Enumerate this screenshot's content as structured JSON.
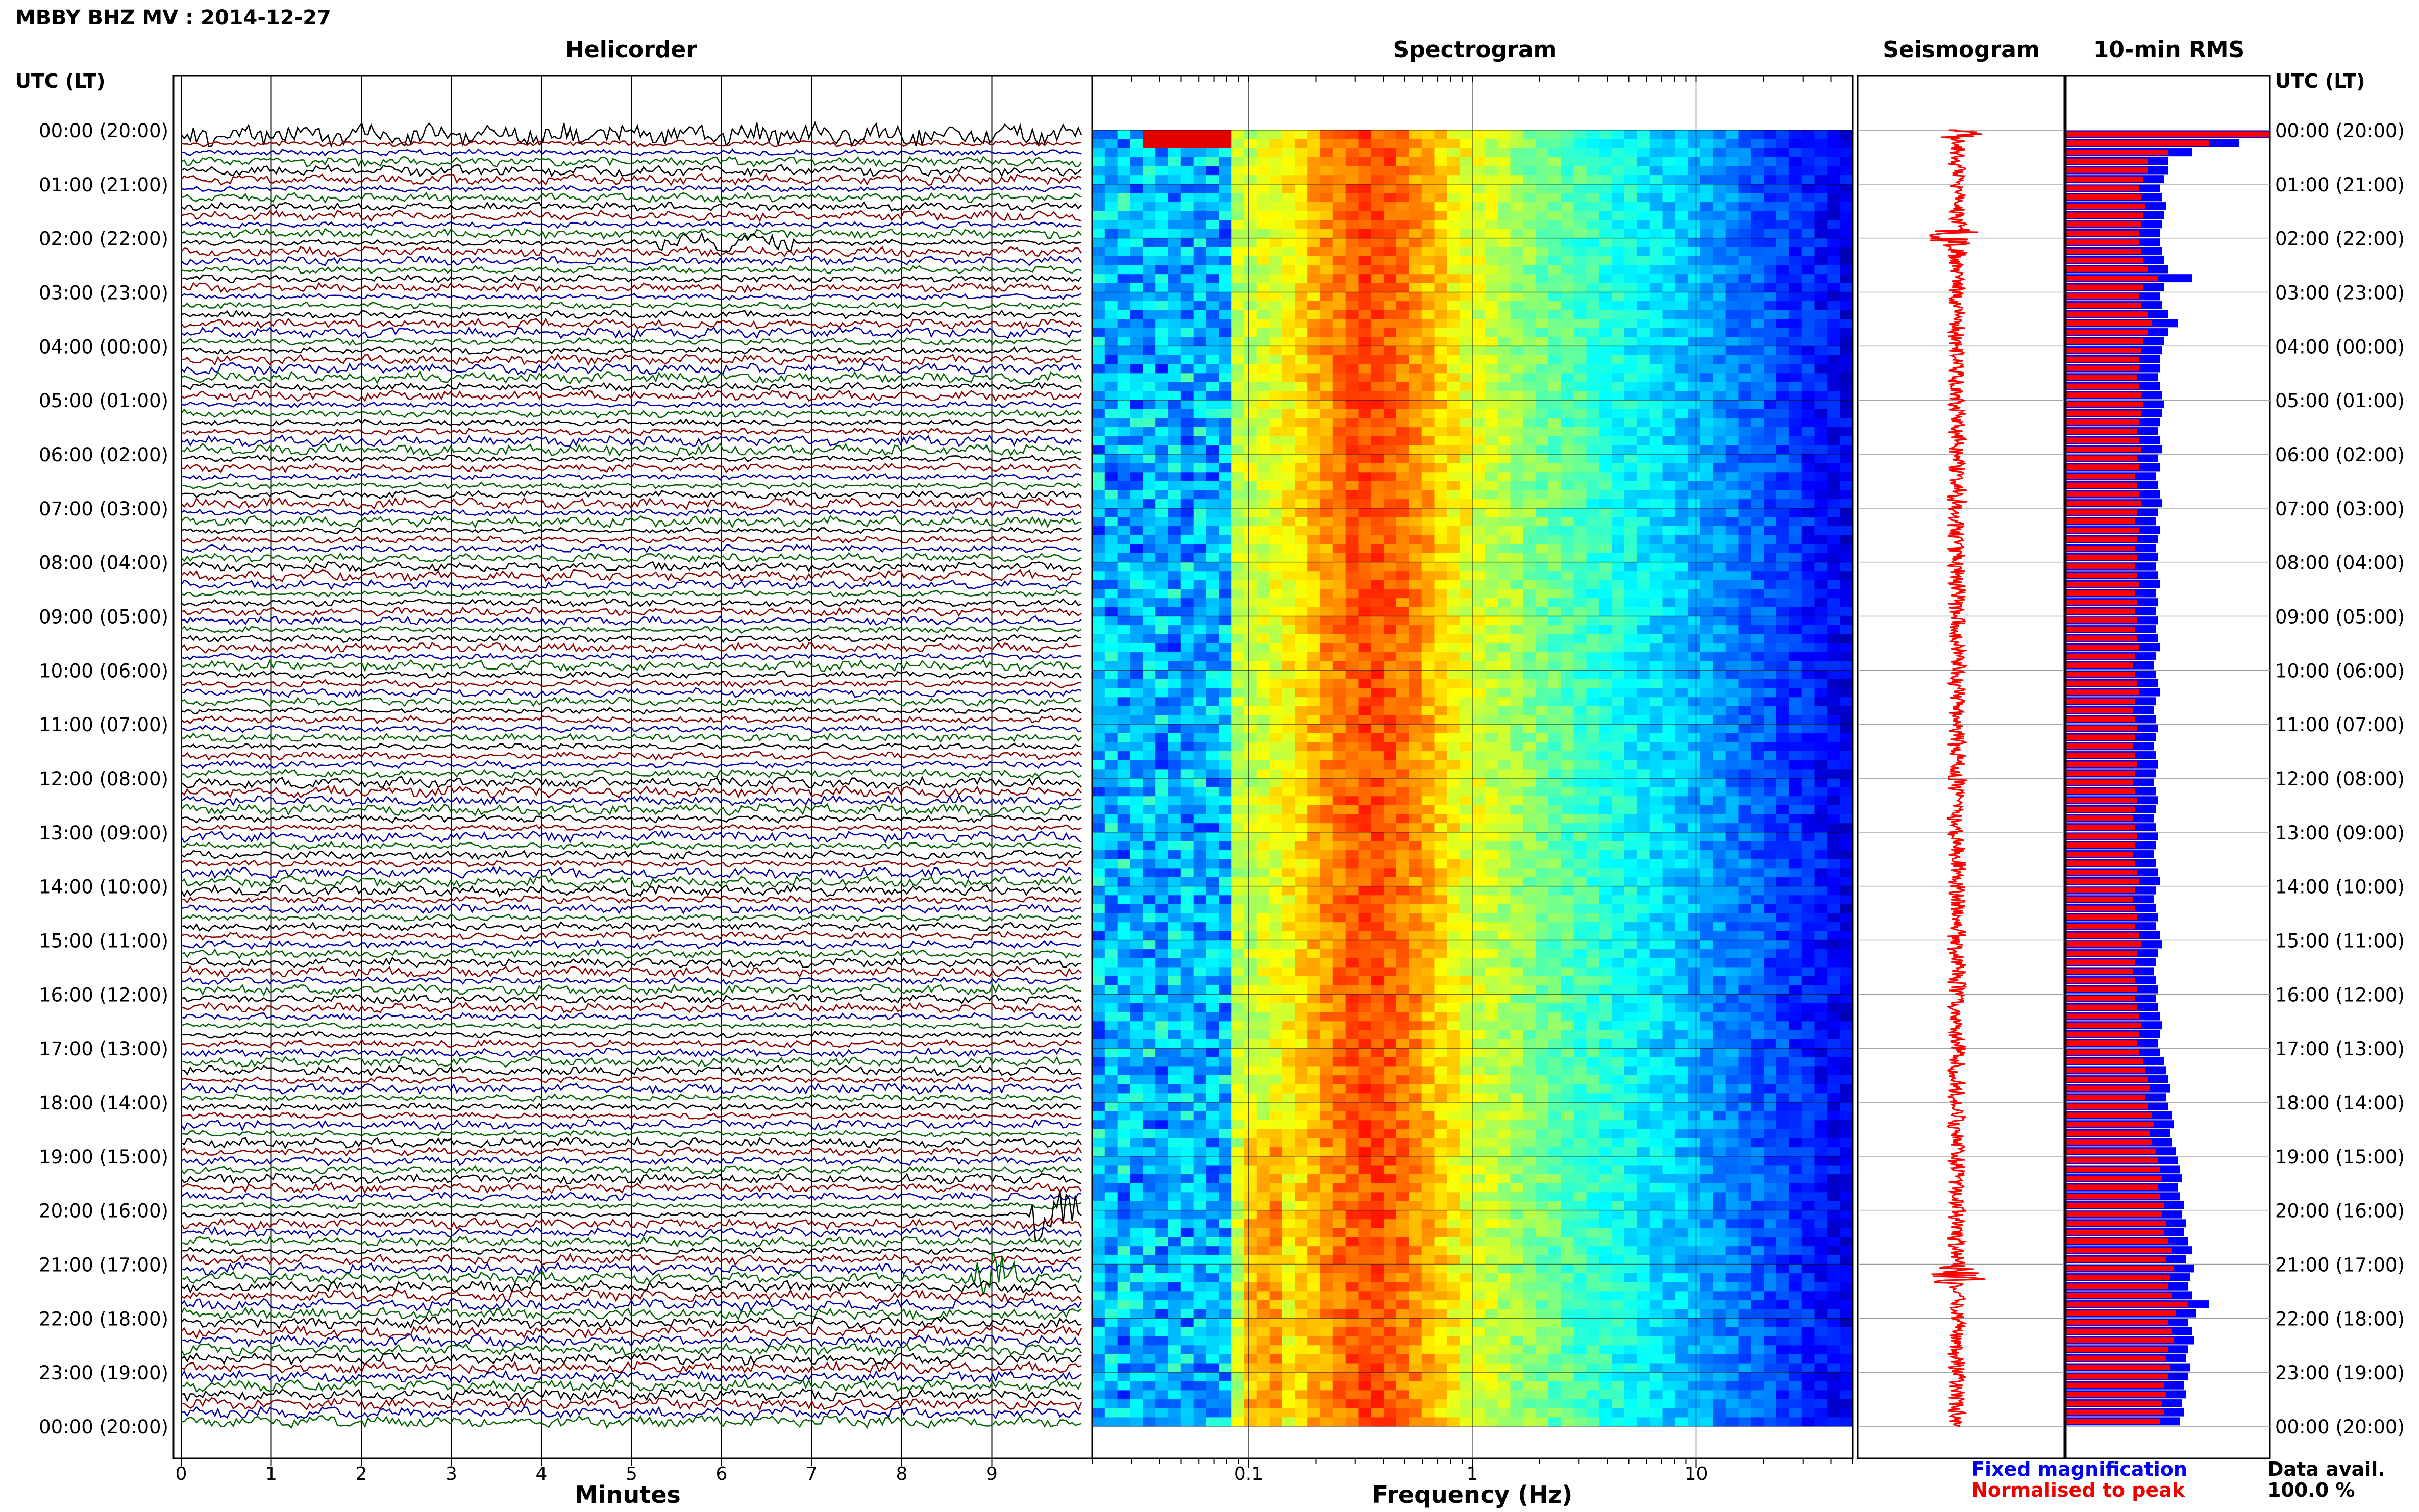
{
  "title": "MBBY BHZ MV : 2014-12-27",
  "panels": {
    "helicorder": "Helicorder",
    "spectrogram": "Spectrogram",
    "seismogram": "Seismogram",
    "rms": "10-min RMS"
  },
  "axis_header_left": "UTC (LT)",
  "axis_header_right": "UTC (LT)",
  "xlabel_minutes": "Minutes",
  "xlabel_frequency": "Frequency (Hz)",
  "legend": {
    "fixed": "Fixed magnification",
    "normalised": "Normalised to peak",
    "fixed_color": "#0000ee",
    "normalised_color": "#ee0000"
  },
  "data_avail_label": "Data avail.",
  "data_avail_value": "100.0 %",
  "colors": {
    "trace_cycle": [
      "#000000",
      "#8b0000",
      "#0000aa",
      "#006400"
    ],
    "seismogram": "#ff0000",
    "rms_fixed": "#0000ff",
    "rms_norm": "#ff0000"
  },
  "chart_data": [
    {
      "type": "line",
      "name": "helicorder",
      "xlabel": "Minutes",
      "xlim": [
        0,
        10
      ],
      "x_ticks": [
        0,
        1,
        2,
        3,
        4,
        5,
        6,
        7,
        8,
        9
      ],
      "y_ticks": [
        "00:00 (20:00)",
        "01:00 (21:00)",
        "02:00 (22:00)",
        "03:00 (23:00)",
        "04:00 (00:00)",
        "05:00 (01:00)",
        "06:00 (02:00)",
        "07:00 (03:00)",
        "08:00 (04:00)",
        "09:00 (05:00)",
        "10:00 (06:00)",
        "11:00 (07:00)",
        "12:00 (08:00)",
        "13:00 (09:00)",
        "14:00 (10:00)",
        "15:00 (11:00)",
        "16:00 (12:00)",
        "17:00 (13:00)",
        "18:00 (14:00)",
        "19:00 (15:00)",
        "20:00 (16:00)",
        "21:00 (17:00)",
        "22:00 (18:00)",
        "23:00 (19:00)",
        "00:00 (20:00)"
      ],
      "traces_per_hour": 6,
      "trace_count": 144,
      "events": [
        {
          "time": "02:00",
          "minute_start": 5.3,
          "minute_end": 6.8
        },
        {
          "time": "21:00",
          "minute": 9.0
        },
        {
          "time": "20:00",
          "minute": 9.7
        }
      ]
    },
    {
      "type": "heatmap",
      "name": "spectrogram",
      "xlabel": "Frequency (Hz)",
      "x_scale": "log",
      "xlim": [
        0.02,
        50
      ],
      "x_ticks": [
        0.1,
        1,
        10
      ],
      "x_tick_labels": [
        "0.1",
        "1",
        "10"
      ],
      "rows": 144,
      "colormap": "jet"
    },
    {
      "type": "line",
      "name": "seismogram",
      "hours": 24,
      "spikes_at_hours": [
        0,
        2,
        21.2
      ]
    },
    {
      "type": "bar",
      "name": "10-min RMS",
      "orientation": "horizontal",
      "series": [
        {
          "name": "Fixed magnification",
          "values_relative": [
            1.0,
            0.85,
            0.62,
            0.5,
            0.5,
            0.48,
            0.46,
            0.47,
            0.49,
            0.48,
            0.47,
            0.46,
            0.46,
            0.47,
            0.48,
            0.5,
            0.62,
            0.48,
            0.46,
            0.47,
            0.5,
            0.55,
            0.5,
            0.48,
            0.47,
            0.46,
            0.46,
            0.45,
            0.46,
            0.47,
            0.48,
            0.47,
            0.46,
            0.45,
            0.46,
            0.47,
            0.45,
            0.46,
            0.44,
            0.45,
            0.46,
            0.47,
            0.45,
            0.44,
            0.46,
            0.45,
            0.44,
            0.45,
            0.44,
            0.45,
            0.46,
            0.44,
            0.45,
            0.44,
            0.45,
            0.44,
            0.45,
            0.46,
            0.44,
            0.43,
            0.44,
            0.45,
            0.46,
            0.44,
            0.43,
            0.44,
            0.45,
            0.44,
            0.43,
            0.44,
            0.45,
            0.44,
            0.43,
            0.44,
            0.45,
            0.44,
            0.43,
            0.44,
            0.45,
            0.44,
            0.43,
            0.44,
            0.45,
            0.46,
            0.44,
            0.43,
            0.44,
            0.45,
            0.44,
            0.46,
            0.47,
            0.45,
            0.44,
            0.43,
            0.44,
            0.45,
            0.44,
            0.45,
            0.46,
            0.47,
            0.46,
            0.45,
            0.46,
            0.48,
            0.49,
            0.5,
            0.51,
            0.49,
            0.5,
            0.52,
            0.53,
            0.51,
            0.52,
            0.54,
            0.55,
            0.56,
            0.57,
            0.55,
            0.56,
            0.58,
            0.57,
            0.59,
            0.58,
            0.6,
            0.62,
            0.59,
            0.63,
            0.61,
            0.6,
            0.62,
            0.7,
            0.64,
            0.6,
            0.62,
            0.63,
            0.6,
            0.59,
            0.61,
            0.6,
            0.58,
            0.59,
            0.57,
            0.58,
            0.56
          ]
        },
        {
          "name": "Normalised to peak",
          "values_relative": [
            1.0,
            0.7,
            0.5,
            0.4,
            0.4,
            0.38,
            0.36,
            0.37,
            0.39,
            0.38,
            0.37,
            0.36,
            0.36,
            0.37,
            0.38,
            0.4,
            0.45,
            0.38,
            0.36,
            0.37,
            0.4,
            0.42,
            0.4,
            0.38,
            0.37,
            0.36,
            0.36,
            0.35,
            0.36,
            0.37,
            0.38,
            0.37,
            0.36,
            0.35,
            0.36,
            0.37,
            0.35,
            0.36,
            0.34,
            0.35,
            0.36,
            0.37,
            0.35,
            0.34,
            0.36,
            0.35,
            0.34,
            0.35,
            0.34,
            0.35,
            0.36,
            0.34,
            0.35,
            0.34,
            0.35,
            0.34,
            0.35,
            0.36,
            0.34,
            0.33,
            0.34,
            0.35,
            0.36,
            0.34,
            0.33,
            0.34,
            0.35,
            0.34,
            0.33,
            0.34,
            0.35,
            0.34,
            0.33,
            0.34,
            0.35,
            0.34,
            0.33,
            0.34,
            0.35,
            0.34,
            0.33,
            0.34,
            0.35,
            0.36,
            0.34,
            0.33,
            0.34,
            0.35,
            0.34,
            0.36,
            0.37,
            0.35,
            0.34,
            0.33,
            0.34,
            0.35,
            0.34,
            0.35,
            0.36,
            0.37,
            0.36,
            0.35,
            0.36,
            0.38,
            0.39,
            0.4,
            0.41,
            0.39,
            0.4,
            0.42,
            0.43,
            0.41,
            0.42,
            0.44,
            0.45,
            0.46,
            0.47,
            0.45,
            0.46,
            0.48,
            0.47,
            0.49,
            0.48,
            0.5,
            0.52,
            0.49,
            0.53,
            0.51,
            0.5,
            0.52,
            0.6,
            0.54,
            0.5,
            0.52,
            0.53,
            0.5,
            0.49,
            0.51,
            0.5,
            0.48,
            0.49,
            0.47,
            0.48,
            0.46
          ]
        }
      ]
    }
  ]
}
